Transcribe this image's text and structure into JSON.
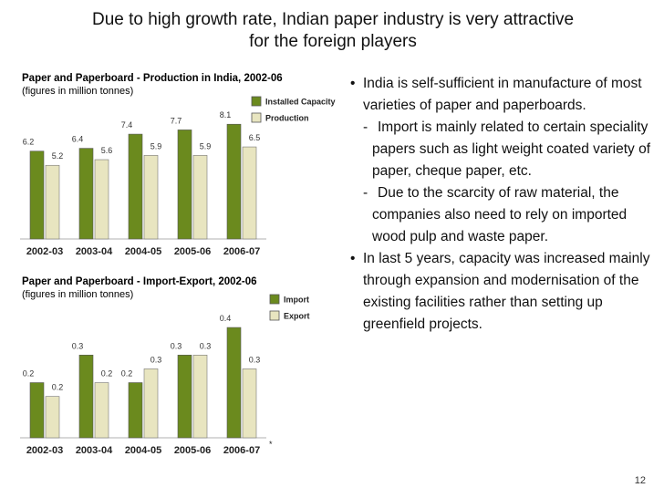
{
  "slide": {
    "title_line1": "Due to high growth rate, Indian paper industry is very attractive",
    "title_line2": "for the foreign players",
    "page_number": "12"
  },
  "bullets": [
    {
      "text": "India is self-sufficient in manufacture of most varieties of paper and paperboards.",
      "subs": [
        "Import is mainly related to certain speciality  papers such as light weight coated variety of paper, cheque paper, etc.",
        "Due to the scarcity of raw material, the companies also need to rely on imported wood pulp and waste paper."
      ]
    },
    {
      "text": "In last 5 years, capacity was increased mainly through expansion and modernisation of the existing facilities rather than setting up greenfield projects.",
      "subs": []
    }
  ],
  "colors": {
    "dark": "#6b8a1e",
    "light": "#e8e5c0",
    "axis": "#b0b0b0"
  },
  "chart_data": [
    {
      "type": "bar",
      "title": "Paper and Paperboard - Production in India, 2002-06",
      "subtitle": "(figures in million tonnes)",
      "categories": [
        "2002-03",
        "2003-04",
        "2004-05",
        "2005-06",
        "2006-07"
      ],
      "series": [
        {
          "name": "Installed Capacity",
          "values": [
            6.2,
            6.4,
            7.4,
            7.7,
            8.1
          ],
          "labels": [
            "6.2",
            "6.4",
            "7.4",
            "7.7",
            "8.1"
          ]
        },
        {
          "name": "Production",
          "values": [
            5.2,
            5.6,
            5.9,
            5.9,
            6.5
          ],
          "labels": [
            "5.2",
            "5.6",
            "5.9",
            "5.9",
            "6.5"
          ]
        }
      ],
      "ylim": [
        0,
        8.5
      ],
      "legend": "top-right",
      "grid": false
    },
    {
      "type": "bar",
      "title": "Paper and Paperboard - Import-Export, 2002-06",
      "subtitle": "(figures in million tonnes)",
      "categories": [
        "2002-03",
        "2003-04",
        "2004-05",
        "2005-06",
        "2006-07"
      ],
      "category_note": "*",
      "series": [
        {
          "name": "Import",
          "values": [
            0.2,
            0.3,
            0.2,
            0.3,
            0.4
          ],
          "labels": [
            "0.2",
            "0.3",
            "0.2",
            "0.3",
            "0.4"
          ]
        },
        {
          "name": "Export",
          "values": [
            0.15,
            0.2,
            0.25,
            0.3,
            0.25
          ],
          "labels": [
            "0.2",
            "0.2",
            "0.3",
            "0.3",
            "0.3"
          ]
        }
      ],
      "ylim": [
        0,
        0.42
      ],
      "legend": "top-right",
      "grid": false
    }
  ]
}
